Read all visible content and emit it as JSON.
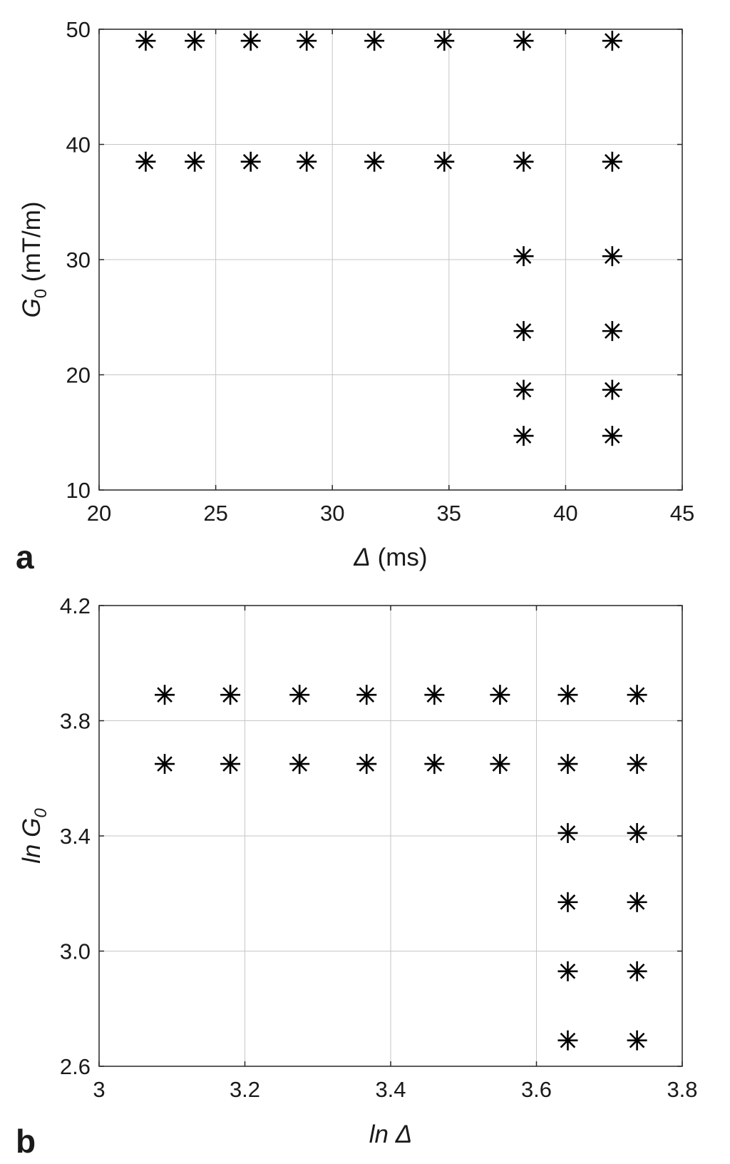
{
  "chart_data": [
    {
      "type": "scatter",
      "panel_label": "a",
      "xlabel": "Δ (ms)",
      "ylabel": "G0 (mT/m)",
      "xlim": [
        20,
        45
      ],
      "ylim": [
        10,
        50
      ],
      "xticks": [
        20,
        25,
        30,
        35,
        40,
        45
      ],
      "yticks": [
        10,
        20,
        30,
        40,
        50
      ],
      "xtick_labels": [
        "20",
        "25",
        "30",
        "35",
        "40",
        "45"
      ],
      "ytick_labels": [
        "10",
        "20",
        "30",
        "40",
        "50"
      ],
      "grid": true,
      "marker": "asterisk",
      "color": "#000000",
      "x": [
        22.0,
        24.1,
        26.5,
        28.9,
        31.8,
        34.8,
        38.2,
        42.0,
        22.0,
        24.1,
        26.5,
        28.9,
        31.8,
        34.8,
        38.2,
        42.0,
        38.2,
        42.0,
        38.2,
        42.0,
        38.2,
        42.0,
        38.2,
        42.0
      ],
      "y": [
        49.0,
        49.0,
        49.0,
        49.0,
        49.0,
        49.0,
        49.0,
        49.0,
        38.5,
        38.5,
        38.5,
        38.5,
        38.5,
        38.5,
        38.5,
        38.5,
        30.3,
        30.3,
        23.8,
        23.8,
        18.7,
        18.7,
        14.7,
        14.7
      ]
    },
    {
      "type": "scatter",
      "panel_label": "b",
      "xlabel": "ln Δ",
      "ylabel": "ln G0",
      "xlim": [
        3.0,
        3.8
      ],
      "ylim": [
        2.6,
        4.2
      ],
      "xticks": [
        3.0,
        3.2,
        3.4,
        3.6,
        3.8
      ],
      "yticks": [
        2.6,
        3.0,
        3.4,
        3.8,
        4.2
      ],
      "xtick_labels": [
        "3",
        "3.2",
        "3.4",
        "3.6",
        "3.8"
      ],
      "ytick_labels": [
        "2.6",
        "3.0",
        "3.4",
        "3.8",
        "4.2"
      ],
      "grid": true,
      "marker": "asterisk",
      "color": "#000000",
      "x": [
        3.09,
        3.18,
        3.275,
        3.367,
        3.46,
        3.55,
        3.643,
        3.738,
        3.09,
        3.18,
        3.275,
        3.367,
        3.46,
        3.55,
        3.643,
        3.738,
        3.643,
        3.738,
        3.643,
        3.738,
        3.643,
        3.738,
        3.643,
        3.738
      ],
      "y": [
        3.89,
        3.89,
        3.89,
        3.89,
        3.89,
        3.89,
        3.89,
        3.89,
        3.65,
        3.65,
        3.65,
        3.65,
        3.65,
        3.65,
        3.65,
        3.65,
        3.41,
        3.41,
        3.17,
        3.17,
        2.93,
        2.93,
        2.69,
        2.69
      ]
    }
  ]
}
